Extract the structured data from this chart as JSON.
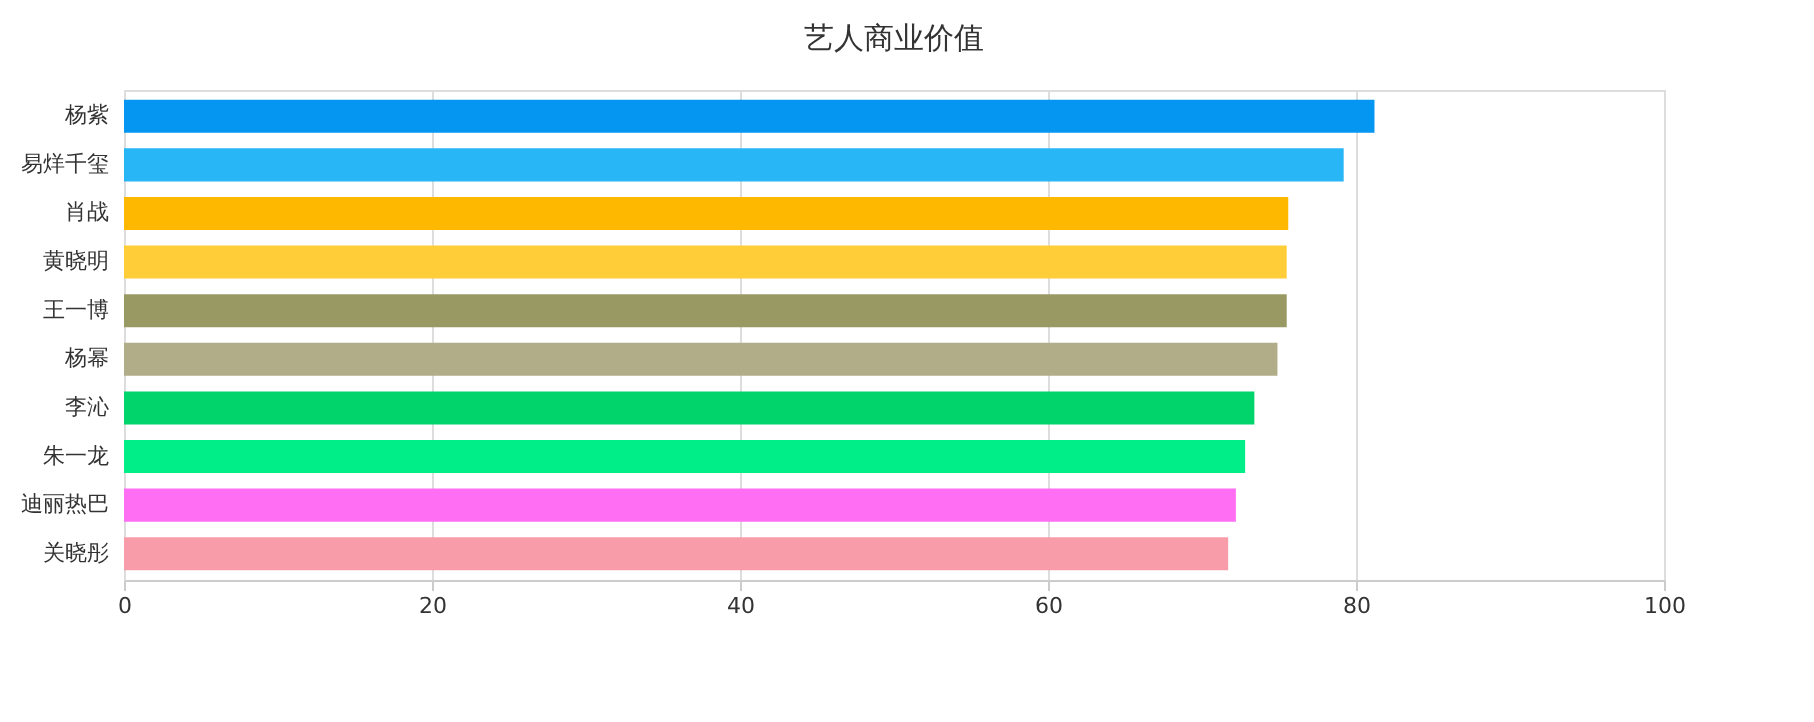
{
  "chart_data": {
    "type": "bar",
    "orientation": "horizontal",
    "title": "艺人商业价值",
    "categories": [
      "杨紫",
      "易烊千玺",
      "肖战",
      "黄晓明",
      "王一博",
      "杨幂",
      "李沁",
      "朱一龙",
      "迪丽热巴",
      "关晓彤"
    ],
    "values": [
      81.2,
      79.2,
      75.6,
      75.5,
      75.5,
      74.9,
      73.4,
      72.8,
      72.2,
      71.7
    ],
    "colors": [
      "#0496f0",
      "#29b6f6",
      "#ffb800",
      "#ffcd38",
      "#999a63",
      "#b0ad88",
      "#00d46a",
      "#00ee88",
      "#ff6ef3",
      "#f89ca9"
    ],
    "xlim": [
      0,
      100
    ],
    "xticks": [
      0,
      20,
      40,
      60,
      80,
      100
    ],
    "grid": "x"
  }
}
